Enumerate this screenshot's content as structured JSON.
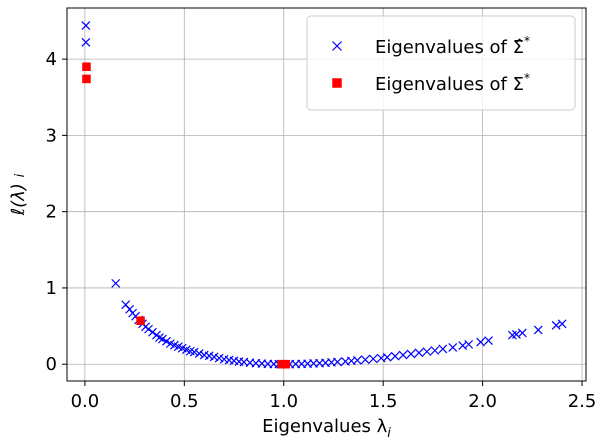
{
  "chart_data": {
    "type": "scatter",
    "xlabel": "Eigenvalues λ",
    "xlabel_sub": "i",
    "ylabel": "ℓ(λ)",
    "ylabel_sub": "i",
    "xlim": [
      -0.09,
      2.52
    ],
    "ylim": [
      -0.22,
      4.67
    ],
    "xticks": [
      0.0,
      0.5,
      1.0,
      1.5,
      2.0,
      2.5
    ],
    "xtick_labels": [
      "0.0",
      "0.5",
      "1.0",
      "1.5",
      "2.0",
      "2.5"
    ],
    "yticks": [
      0,
      1,
      2,
      3,
      4
    ],
    "ytick_labels": [
      "0",
      "1",
      "2",
      "3",
      "4"
    ],
    "grid": true,
    "legend_position": "top-right",
    "series": [
      {
        "name": "Eigenvalues of Σ̂*",
        "legend_prefix": "Eigenvalues of ",
        "legend_symbol": "Σ̂",
        "legend_sup": "*",
        "marker": "x",
        "color": "#0000ff",
        "points": [
          [
            0.005,
            4.44
          ],
          [
            0.005,
            4.22
          ],
          [
            0.155,
            1.06
          ],
          [
            0.205,
            0.78
          ],
          [
            0.225,
            0.72
          ],
          [
            0.24,
            0.67
          ],
          [
            0.255,
            0.63
          ],
          [
            0.27,
            0.58
          ],
          [
            0.29,
            0.53
          ],
          [
            0.305,
            0.49
          ],
          [
            0.32,
            0.46
          ],
          [
            0.34,
            0.42
          ],
          [
            0.36,
            0.38
          ],
          [
            0.375,
            0.35
          ],
          [
            0.39,
            0.33
          ],
          [
            0.41,
            0.3
          ],
          [
            0.43,
            0.27
          ],
          [
            0.45,
            0.25
          ],
          [
            0.47,
            0.23
          ],
          [
            0.49,
            0.21
          ],
          [
            0.51,
            0.19
          ],
          [
            0.53,
            0.17
          ],
          [
            0.55,
            0.16
          ],
          [
            0.575,
            0.14
          ],
          [
            0.6,
            0.12
          ],
          [
            0.625,
            0.11
          ],
          [
            0.65,
            0.095
          ],
          [
            0.675,
            0.08
          ],
          [
            0.7,
            0.065
          ],
          [
            0.725,
            0.055
          ],
          [
            0.75,
            0.045
          ],
          [
            0.775,
            0.035
          ],
          [
            0.8,
            0.028
          ],
          [
            0.83,
            0.02
          ],
          [
            0.86,
            0.013
          ],
          [
            0.89,
            0.008
          ],
          [
            0.92,
            0.004
          ],
          [
            0.95,
            0.002
          ],
          [
            0.975,
            0.001
          ],
          [
            0.99,
            0.0
          ],
          [
            1.01,
            0.0
          ],
          [
            1.03,
            0.001
          ],
          [
            1.06,
            0.002
          ],
          [
            1.09,
            0.004
          ],
          [
            1.12,
            0.007
          ],
          [
            1.15,
            0.01
          ],
          [
            1.18,
            0.014
          ],
          [
            1.21,
            0.019
          ],
          [
            1.24,
            0.024
          ],
          [
            1.27,
            0.03
          ],
          [
            1.31,
            0.037
          ],
          [
            1.34,
            0.044
          ],
          [
            1.37,
            0.051
          ],
          [
            1.41,
            0.06
          ],
          [
            1.45,
            0.07
          ],
          [
            1.49,
            0.08
          ],
          [
            1.52,
            0.09
          ],
          [
            1.56,
            0.105
          ],
          [
            1.6,
            0.12
          ],
          [
            1.64,
            0.135
          ],
          [
            1.68,
            0.15
          ],
          [
            1.72,
            0.165
          ],
          [
            1.76,
            0.18
          ],
          [
            1.8,
            0.2
          ],
          [
            1.85,
            0.22
          ],
          [
            1.9,
            0.245
          ],
          [
            1.93,
            0.26
          ],
          [
            1.99,
            0.29
          ],
          [
            2.03,
            0.31
          ],
          [
            2.15,
            0.38
          ],
          [
            2.17,
            0.39
          ],
          [
            2.2,
            0.41
          ],
          [
            2.28,
            0.45
          ],
          [
            2.37,
            0.51
          ],
          [
            2.4,
            0.53
          ]
        ]
      },
      {
        "name": "Eigenvalues of Σ*",
        "legend_prefix": "Eigenvalues of ",
        "legend_symbol": "Σ",
        "legend_sup": "*",
        "marker": "square",
        "color": "#ff0000",
        "points": [
          [
            0.008,
            3.9
          ],
          [
            0.008,
            3.74
          ],
          [
            0.28,
            0.57
          ],
          [
            0.99,
            0.0
          ],
          [
            1.0,
            0.0
          ],
          [
            1.005,
            0.0
          ],
          [
            1.01,
            0.0
          ]
        ]
      }
    ]
  }
}
